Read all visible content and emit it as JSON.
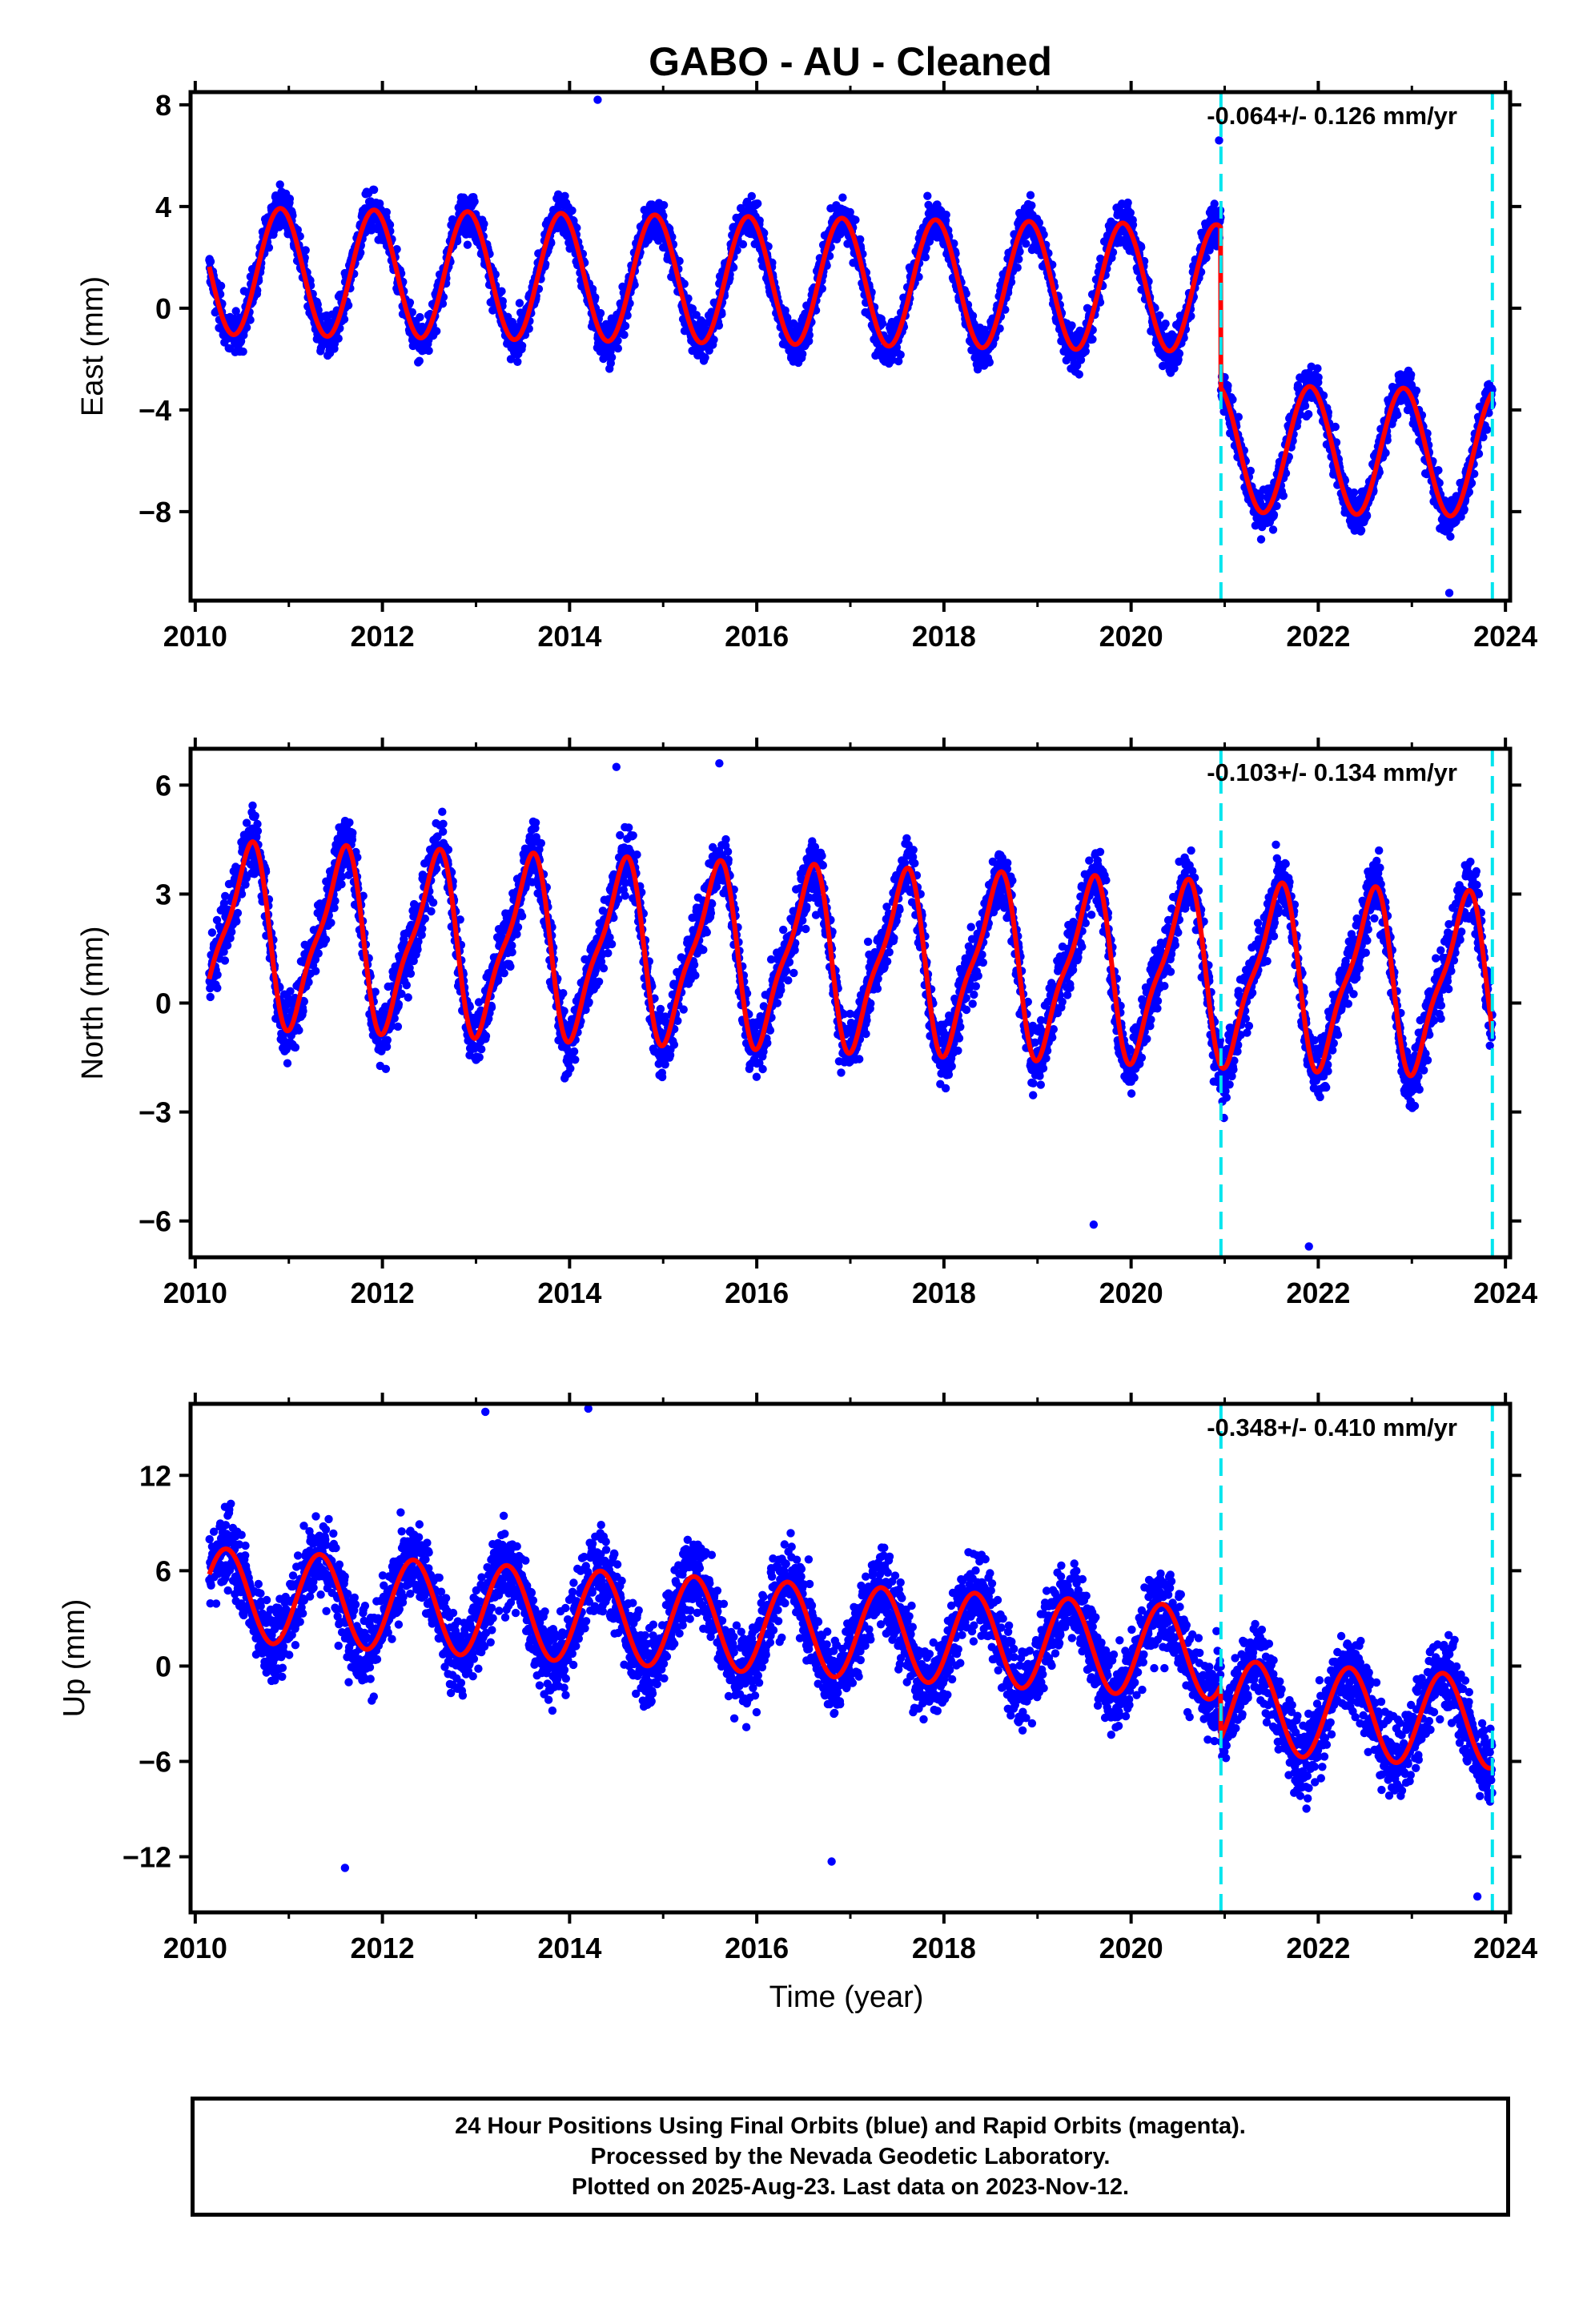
{
  "title": "GABO  - AU - Cleaned",
  "colors": {
    "points": "#0000ff",
    "model": "#ff0000",
    "event_line": "#00e5ee",
    "axis": "#000000"
  },
  "chart_data": [
    {
      "type": "scatter",
      "ylabel": "East (mm)",
      "xlabel": "",
      "xlim": [
        2009.95,
        2024.05
      ],
      "ylim": [
        -11.5,
        8.5
      ],
      "yticks": [
        8,
        4,
        0,
        -4,
        -8
      ],
      "ytick_labels": [
        "8",
        "4",
        "0",
        "−4",
        "−8"
      ],
      "xticks": [
        2010,
        2012,
        2014,
        2016,
        2018,
        2020,
        2022,
        2024
      ],
      "xtick_labels": [
        "2010",
        "2012",
        "2014",
        "2016",
        "2018",
        "2020",
        "2022",
        "2024"
      ],
      "rate_label": "-0.064+/- 0.126 mm/yr",
      "event_lines": [
        2020.96,
        2023.86
      ],
      "data_range": [
        2010.15,
        2023.86
      ],
      "model": {
        "offset_before": 1.1,
        "offset_after": -5.2,
        "step_at": 2020.96,
        "trend": -0.064,
        "annual_amp": 2.5,
        "annual_phase": 0.66,
        "semi_amp": 0.0,
        "semi_phase": 0
      },
      "scatter": {
        "sigma": 1.05,
        "outliers": [
          [
            2014.3,
            8.2
          ],
          [
            2020.94,
            6.6
          ],
          [
            2023.4,
            -11.2
          ]
        ]
      }
    },
    {
      "type": "scatter",
      "ylabel": "North (mm)",
      "xlabel": "",
      "xlim": [
        2009.95,
        2024.05
      ],
      "ylim": [
        -7,
        7
      ],
      "yticks": [
        6,
        3,
        0,
        -3,
        -6
      ],
      "ytick_labels": [
        "6",
        "3",
        "0",
        "−3",
        "−6"
      ],
      "xticks": [
        2010,
        2012,
        2014,
        2016,
        2018,
        2020,
        2022,
        2024
      ],
      "xtick_labels": [
        "2010",
        "2012",
        "2014",
        "2016",
        "2018",
        "2020",
        "2022",
        "2024"
      ],
      "rate_label": "-0.103+/- 0.134 mm/yr",
      "event_lines": [
        2020.96,
        2023.86
      ],
      "data_range": [
        2010.15,
        2023.86
      ],
      "model": {
        "offset_before": 1.3,
        "offset_after": 0.0,
        "step_at": 9999,
        "trend": -0.103,
        "annual_amp": 2.3,
        "annual_phase": 0.3,
        "semi_amp": 0.65,
        "semi_phase": 0.05
      },
      "scatter": {
        "sigma": 1.1,
        "outliers": [
          [
            2015.6,
            6.6
          ],
          [
            2014.5,
            6.5
          ],
          [
            2021.9,
            -6.7
          ],
          [
            2019.6,
            -6.1
          ]
        ]
      }
    },
    {
      "type": "scatter",
      "ylabel": "Up (mm)",
      "xlabel": "Time (year)",
      "xlim": [
        2009.95,
        2024.05
      ],
      "ylim": [
        -15.5,
        16.5
      ],
      "yticks": [
        12,
        6,
        0,
        -6,
        -12
      ],
      "ytick_labels": [
        "12",
        "6",
        "0",
        "−6",
        "−12"
      ],
      "xticks": [
        2010,
        2012,
        2014,
        2016,
        2018,
        2020,
        2022,
        2024
      ],
      "xtick_labels": [
        "2010",
        "2012",
        "2014",
        "2016",
        "2018",
        "2020",
        "2022",
        "2024"
      ],
      "rate_label": "-0.348+/- 0.410 mm/yr",
      "event_lines": [
        2020.96,
        2023.86
      ],
      "data_range": [
        2010.15,
        2023.86
      ],
      "model": {
        "offset_before": 2.5,
        "offset_after": -0.8,
        "step_at": 2020.96,
        "trend": -0.348,
        "annual_amp": 2.9,
        "annual_phase": 0.08,
        "semi_amp": 0.0,
        "semi_phase": 0
      },
      "scatter": {
        "sigma": 3.2,
        "outliers": [
          [
            2013.1,
            16.0
          ],
          [
            2014.2,
            16.2
          ],
          [
            2011.6,
            -12.7
          ],
          [
            2016.8,
            -12.3
          ],
          [
            2023.7,
            -14.5
          ]
        ]
      }
    }
  ],
  "caption": {
    "line1": "24 Hour Positions Using Final Orbits (blue) and Rapid Orbits (magenta).",
    "line2": "Processed by the Nevada Geodetic Laboratory.",
    "line3": "Plotted on 2025-Aug-23. Last data on 2023-Nov-12."
  }
}
